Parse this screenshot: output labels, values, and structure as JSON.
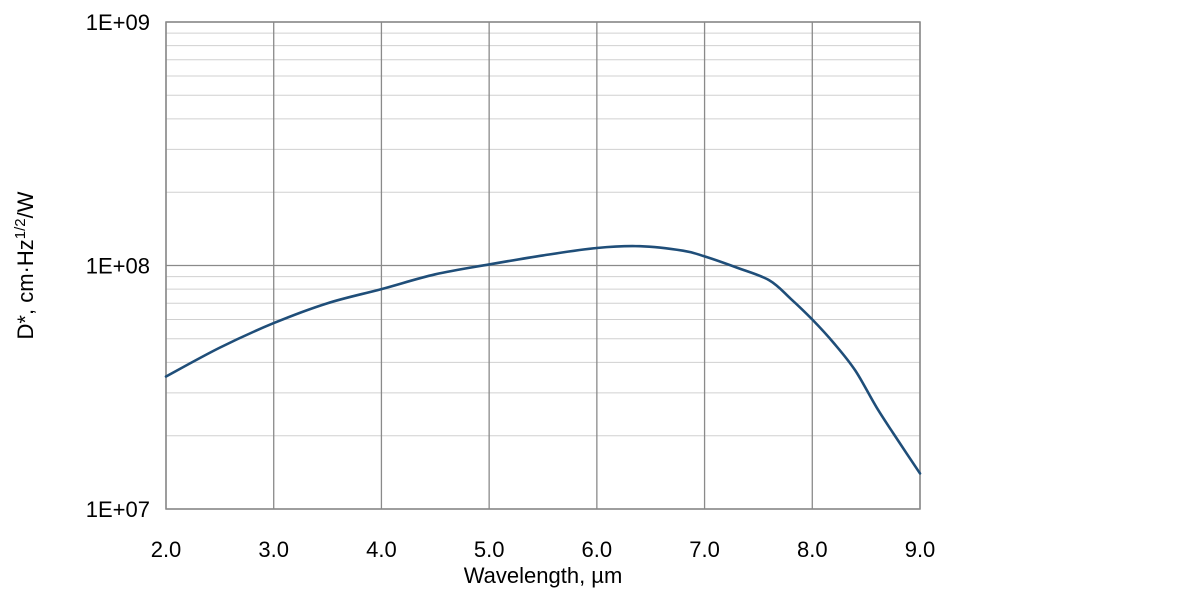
{
  "chart_data": {
    "type": "line",
    "xlabel": "Wavelength, µm",
    "ylabel": {
      "prefix": "D*, cm·Hz",
      "superscript": "1/2",
      "suffix": "/W"
    },
    "xlim": [
      2.0,
      9.0
    ],
    "ylim": [
      10000000,
      1000000000
    ],
    "yscale": "log",
    "grid": true,
    "x_ticks": [
      {
        "value": 2.0,
        "label": "2.0"
      },
      {
        "value": 3.0,
        "label": "3.0"
      },
      {
        "value": 4.0,
        "label": "4.0"
      },
      {
        "value": 5.0,
        "label": "5.0"
      },
      {
        "value": 6.0,
        "label": "6.0"
      },
      {
        "value": 7.0,
        "label": "7.0"
      },
      {
        "value": 8.0,
        "label": "8.0"
      },
      {
        "value": 9.0,
        "label": "9.0"
      }
    ],
    "y_ticks": [
      {
        "value": 10000000,
        "label": "1E+07"
      },
      {
        "value": 100000000,
        "label": "1E+08"
      },
      {
        "value": 1000000000,
        "label": "1E+09"
      }
    ],
    "series": [
      {
        "color": "#1f4e79",
        "x": [
          2.0,
          2.5,
          3.0,
          3.5,
          4.0,
          4.5,
          5.0,
          5.5,
          6.0,
          6.4,
          6.8,
          7.0,
          7.3,
          7.6,
          7.8,
          8.0,
          8.2,
          8.4,
          8.6,
          8.8,
          9.0
        ],
        "y": [
          35000000,
          46000000,
          58000000,
          70000000,
          80000000,
          92000000,
          101000000,
          110000000,
          118000000,
          120000000,
          115000000,
          109000000,
          98000000,
          87000000,
          73000000,
          60000000,
          48000000,
          37000000,
          26000000,
          19000000,
          14000000
        ]
      }
    ]
  }
}
